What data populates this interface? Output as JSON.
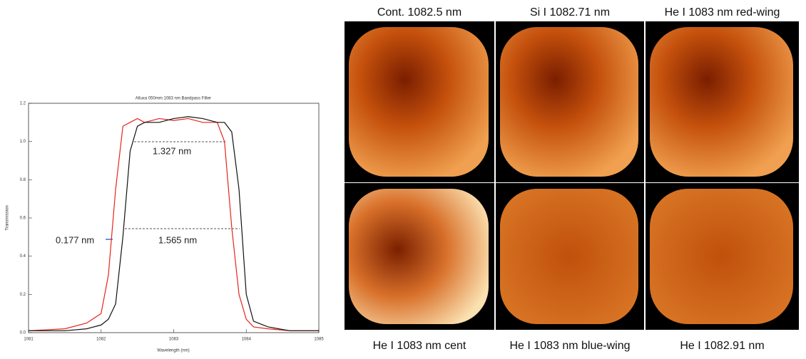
{
  "chart_data": {
    "type": "line",
    "title": "Alluxa 050mm 1083 nm Bandpass Filter",
    "x_label": "Wavelength (nm)",
    "y_label": "Transmission",
    "x": [
      1081,
      1081.5,
      1081.8,
      1082.0,
      1082.1,
      1082.2,
      1082.3,
      1082.4,
      1082.5,
      1082.6,
      1082.8,
      1083.0,
      1083.2,
      1083.4,
      1083.6,
      1083.7,
      1083.8,
      1083.9,
      1084.0,
      1084.1,
      1084.3,
      1084.6,
      1085
    ],
    "series": [
      {
        "color": "#e8241c",
        "values": [
          0.01,
          0.02,
          0.05,
          0.1,
          0.3,
          0.75,
          1.08,
          1.1,
          1.12,
          1.1,
          1.12,
          1.11,
          1.12,
          1.1,
          1.1,
          1.0,
          0.55,
          0.2,
          0.07,
          0.03,
          0.02,
          0.01,
          0.01
        ]
      },
      {
        "color": "#111111",
        "values": [
          0.01,
          0.01,
          0.02,
          0.04,
          0.07,
          0.15,
          0.5,
          0.95,
          1.08,
          1.1,
          1.1,
          1.12,
          1.13,
          1.12,
          1.1,
          1.1,
          1.05,
          0.75,
          0.2,
          0.06,
          0.03,
          0.01,
          0.01
        ]
      }
    ],
    "xlim": [
      1081,
      1085
    ],
    "xticks": [
      1081,
      1082,
      1083,
      1084,
      1085
    ],
    "ylim": [
      0,
      1.2
    ],
    "yticks": [
      {
        "value": 0,
        "label": "0.0"
      },
      0.2,
      0.4,
      0.6,
      0.8,
      {
        "value": 1,
        "label": "1.0"
      },
      1.2
    ],
    "annotations": [
      "1.327 nm",
      "0.177 nm",
      "1.565 nm"
    ]
  },
  "panels": [
    {
      "label": "Cont. 1082.5 nm"
    },
    {
      "label": "Si I 1082.71 nm"
    },
    {
      "label": "He I 1083 nm red-wing"
    },
    {
      "label": "He I 1083 nm cent"
    },
    {
      "label": "He I 1083 nm blue-wing"
    },
    {
      "label": "He I 1082.91 nm"
    }
  ]
}
